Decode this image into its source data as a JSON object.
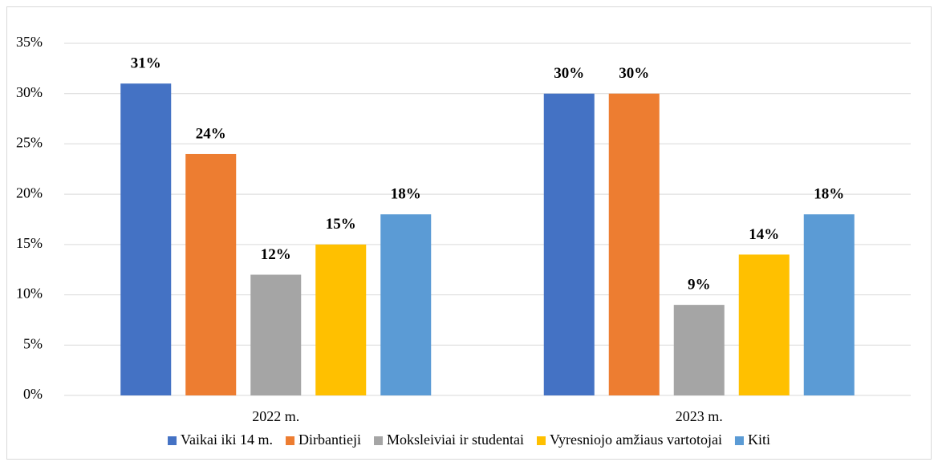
{
  "chart_data": {
    "type": "bar",
    "categories": [
      "2022 m.",
      "2023 m."
    ],
    "series": [
      {
        "name": "Vaikai iki 14 m.",
        "color": "#4472c4",
        "values": [
          31,
          30
        ],
        "value_labels": [
          "31%",
          "30%"
        ]
      },
      {
        "name": "Dirbantieji",
        "color": "#ed7d31",
        "values": [
          24,
          30
        ],
        "value_labels": [
          "24%",
          "30%"
        ]
      },
      {
        "name": "Moksleiviai ir studentai",
        "color": "#a5a5a5",
        "values": [
          12,
          9
        ],
        "value_labels": [
          "12%",
          "9%"
        ]
      },
      {
        "name": "Vyresniojo amžiaus vartotojai",
        "color": "#ffc000",
        "values": [
          15,
          14
        ],
        "value_labels": [
          "15%",
          "14%"
        ]
      },
      {
        "name": "Kiti",
        "color": "#5b9bd5",
        "values": [
          18,
          18
        ],
        "value_labels": [
          "18%",
          "18%"
        ]
      }
    ],
    "ylim": [
      0,
      35
    ],
    "yticks": [
      {
        "value": 0,
        "label": "0%"
      },
      {
        "value": 5,
        "label": "5%"
      },
      {
        "value": 10,
        "label": "10%"
      },
      {
        "value": 15,
        "label": "15%"
      },
      {
        "value": 20,
        "label": "20%"
      },
      {
        "value": 25,
        "label": "25%"
      },
      {
        "value": 30,
        "label": "30%"
      },
      {
        "value": 35,
        "label": "35%"
      }
    ],
    "grid": true,
    "legend": "bottom"
  }
}
